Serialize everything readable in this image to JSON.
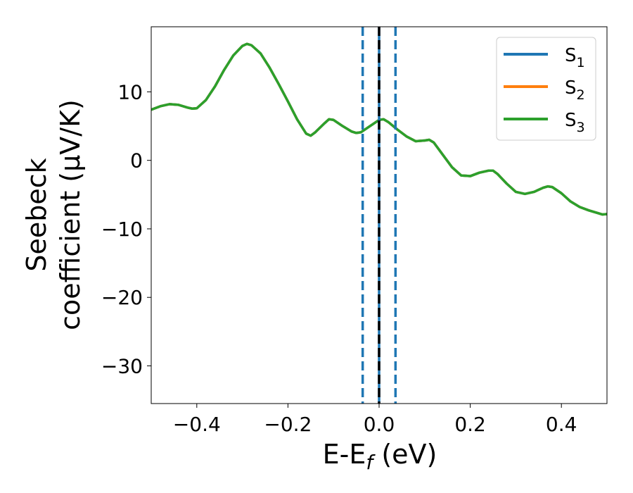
{
  "chart_data": {
    "type": "line",
    "xlabel": {
      "main": "E-E",
      "sub": "f",
      "unit": " (eV)"
    },
    "ylabel": {
      "line1": "Seebeck",
      "line2": "coefficient  (μV/K)"
    },
    "xlim": [
      -0.5,
      0.5
    ],
    "ylim": [
      -35.5,
      19.5
    ],
    "x_ticks": [
      -0.4,
      -0.2,
      0.0,
      0.2,
      0.4
    ],
    "x_tick_labels": [
      "−0.4",
      "−0.2",
      "0.0",
      "0.2",
      "0.4"
    ],
    "y_ticks": [
      10,
      0,
      -10,
      -20,
      -30
    ],
    "y_tick_labels": [
      "10",
      "0",
      "−10",
      "−20",
      "−30"
    ],
    "grid": false,
    "legend_position": "top-right",
    "series": [
      {
        "name": "S1",
        "label_main": "S",
        "label_sub": "1",
        "color": "#1f77b4",
        "points": [
          [
            -0.5,
            7.4
          ],
          [
            -0.48,
            7.9
          ],
          [
            -0.46,
            8.2
          ],
          [
            -0.44,
            8.1
          ],
          [
            -0.42,
            7.7
          ],
          [
            -0.41,
            7.55
          ],
          [
            -0.4,
            7.6
          ],
          [
            -0.38,
            8.8
          ],
          [
            -0.36,
            10.8
          ],
          [
            -0.34,
            13.2
          ],
          [
            -0.32,
            15.3
          ],
          [
            -0.3,
            16.7
          ],
          [
            -0.29,
            17.0
          ],
          [
            -0.28,
            16.8
          ],
          [
            -0.26,
            15.6
          ],
          [
            -0.24,
            13.5
          ],
          [
            -0.22,
            11.1
          ],
          [
            -0.2,
            8.6
          ],
          [
            -0.18,
            6.0
          ],
          [
            -0.16,
            3.9
          ],
          [
            -0.15,
            3.6
          ],
          [
            -0.14,
            4.1
          ],
          [
            -0.12,
            5.4
          ],
          [
            -0.11,
            6.0
          ],
          [
            -0.1,
            5.9
          ],
          [
            -0.08,
            5.0
          ],
          [
            -0.06,
            4.2
          ],
          [
            -0.05,
            4.0
          ],
          [
            -0.04,
            4.1
          ],
          [
            -0.02,
            5.0
          ],
          [
            0.0,
            5.9
          ],
          [
            0.01,
            6.0
          ],
          [
            0.02,
            5.6
          ],
          [
            0.04,
            4.5
          ],
          [
            0.06,
            3.5
          ],
          [
            0.08,
            2.8
          ],
          [
            0.1,
            2.9
          ],
          [
            0.11,
            3.0
          ],
          [
            0.12,
            2.6
          ],
          [
            0.14,
            0.8
          ],
          [
            0.16,
            -1.0
          ],
          [
            0.18,
            -2.2
          ],
          [
            0.2,
            -2.3
          ],
          [
            0.22,
            -1.8
          ],
          [
            0.24,
            -1.5
          ],
          [
            0.25,
            -1.5
          ],
          [
            0.26,
            -2.0
          ],
          [
            0.28,
            -3.4
          ],
          [
            0.3,
            -4.6
          ],
          [
            0.32,
            -4.9
          ],
          [
            0.34,
            -4.6
          ],
          [
            0.36,
            -4.0
          ],
          [
            0.37,
            -3.8
          ],
          [
            0.38,
            -3.9
          ],
          [
            0.4,
            -4.8
          ],
          [
            0.42,
            -6.0
          ],
          [
            0.44,
            -6.8
          ],
          [
            0.46,
            -7.3
          ],
          [
            0.48,
            -7.7
          ],
          [
            0.49,
            -7.9
          ],
          [
            0.5,
            -7.85
          ]
        ]
      },
      {
        "name": "S2",
        "label_main": "S",
        "label_sub": "2",
        "color": "#ff7f0e",
        "points": [
          [
            -0.5,
            7.4
          ],
          [
            -0.48,
            7.9
          ],
          [
            -0.46,
            8.2
          ],
          [
            -0.44,
            8.1
          ],
          [
            -0.42,
            7.7
          ],
          [
            -0.41,
            7.55
          ],
          [
            -0.4,
            7.6
          ],
          [
            -0.38,
            8.8
          ],
          [
            -0.36,
            10.8
          ],
          [
            -0.34,
            13.2
          ],
          [
            -0.32,
            15.3
          ],
          [
            -0.3,
            16.7
          ],
          [
            -0.29,
            17.0
          ],
          [
            -0.28,
            16.8
          ],
          [
            -0.26,
            15.6
          ],
          [
            -0.24,
            13.5
          ],
          [
            -0.22,
            11.1
          ],
          [
            -0.2,
            8.6
          ],
          [
            -0.18,
            6.0
          ],
          [
            -0.16,
            3.9
          ],
          [
            -0.15,
            3.6
          ],
          [
            -0.14,
            4.1
          ],
          [
            -0.12,
            5.4
          ],
          [
            -0.11,
            6.0
          ],
          [
            -0.1,
            5.9
          ],
          [
            -0.08,
            5.0
          ],
          [
            -0.06,
            4.2
          ],
          [
            -0.05,
            4.0
          ],
          [
            -0.04,
            4.1
          ],
          [
            -0.02,
            5.0
          ],
          [
            0.0,
            5.9
          ],
          [
            0.01,
            6.0
          ],
          [
            0.02,
            5.6
          ],
          [
            0.04,
            4.5
          ],
          [
            0.06,
            3.5
          ],
          [
            0.08,
            2.8
          ],
          [
            0.1,
            2.9
          ],
          [
            0.11,
            3.0
          ],
          [
            0.12,
            2.6
          ],
          [
            0.14,
            0.8
          ],
          [
            0.16,
            -1.0
          ],
          [
            0.18,
            -2.2
          ],
          [
            0.2,
            -2.3
          ],
          [
            0.22,
            -1.8
          ],
          [
            0.24,
            -1.5
          ],
          [
            0.25,
            -1.5
          ],
          [
            0.26,
            -2.0
          ],
          [
            0.28,
            -3.4
          ],
          [
            0.3,
            -4.6
          ],
          [
            0.32,
            -4.9
          ],
          [
            0.34,
            -4.6
          ],
          [
            0.36,
            -4.0
          ],
          [
            0.37,
            -3.8
          ],
          [
            0.38,
            -3.9
          ],
          [
            0.4,
            -4.8
          ],
          [
            0.42,
            -6.0
          ],
          [
            0.44,
            -6.8
          ],
          [
            0.46,
            -7.3
          ],
          [
            0.48,
            -7.7
          ],
          [
            0.49,
            -7.9
          ],
          [
            0.5,
            -7.85
          ]
        ]
      },
      {
        "name": "S3",
        "label_main": "S",
        "label_sub": "3",
        "color": "#2ca02c",
        "points": [
          [
            -0.5,
            7.4
          ],
          [
            -0.48,
            7.9
          ],
          [
            -0.46,
            8.2
          ],
          [
            -0.44,
            8.1
          ],
          [
            -0.42,
            7.7
          ],
          [
            -0.41,
            7.55
          ],
          [
            -0.4,
            7.6
          ],
          [
            -0.38,
            8.8
          ],
          [
            -0.36,
            10.8
          ],
          [
            -0.34,
            13.2
          ],
          [
            -0.32,
            15.3
          ],
          [
            -0.3,
            16.7
          ],
          [
            -0.29,
            17.0
          ],
          [
            -0.28,
            16.8
          ],
          [
            -0.26,
            15.6
          ],
          [
            -0.24,
            13.5
          ],
          [
            -0.22,
            11.1
          ],
          [
            -0.2,
            8.6
          ],
          [
            -0.18,
            6.0
          ],
          [
            -0.16,
            3.9
          ],
          [
            -0.15,
            3.6
          ],
          [
            -0.14,
            4.1
          ],
          [
            -0.12,
            5.4
          ],
          [
            -0.11,
            6.0
          ],
          [
            -0.1,
            5.9
          ],
          [
            -0.08,
            5.0
          ],
          [
            -0.06,
            4.2
          ],
          [
            -0.05,
            4.0
          ],
          [
            -0.04,
            4.1
          ],
          [
            -0.02,
            5.0
          ],
          [
            0.0,
            5.9
          ],
          [
            0.01,
            6.0
          ],
          [
            0.02,
            5.6
          ],
          [
            0.04,
            4.5
          ],
          [
            0.06,
            3.5
          ],
          [
            0.08,
            2.8
          ],
          [
            0.1,
            2.9
          ],
          [
            0.11,
            3.0
          ],
          [
            0.12,
            2.6
          ],
          [
            0.14,
            0.8
          ],
          [
            0.16,
            -1.0
          ],
          [
            0.18,
            -2.2
          ],
          [
            0.2,
            -2.3
          ],
          [
            0.22,
            -1.8
          ],
          [
            0.24,
            -1.5
          ],
          [
            0.25,
            -1.5
          ],
          [
            0.26,
            -2.0
          ],
          [
            0.28,
            -3.4
          ],
          [
            0.3,
            -4.6
          ],
          [
            0.32,
            -4.9
          ],
          [
            0.34,
            -4.6
          ],
          [
            0.36,
            -4.0
          ],
          [
            0.37,
            -3.8
          ],
          [
            0.38,
            -3.9
          ],
          [
            0.4,
            -4.8
          ],
          [
            0.42,
            -6.0
          ],
          [
            0.44,
            -6.8
          ],
          [
            0.46,
            -7.3
          ],
          [
            0.48,
            -7.7
          ],
          [
            0.49,
            -7.9
          ],
          [
            0.5,
            -7.85
          ]
        ]
      }
    ],
    "vertical_lines": [
      {
        "x": -0.036,
        "style": "dashed",
        "color": "#1f77b4"
      },
      {
        "x": 0.036,
        "style": "dashed",
        "color": "#1f77b4"
      },
      {
        "x": 0.0,
        "style": "solid",
        "color": "#1f77b4"
      },
      {
        "x": 0.0,
        "style": "dashed",
        "color": "#000000"
      }
    ]
  }
}
